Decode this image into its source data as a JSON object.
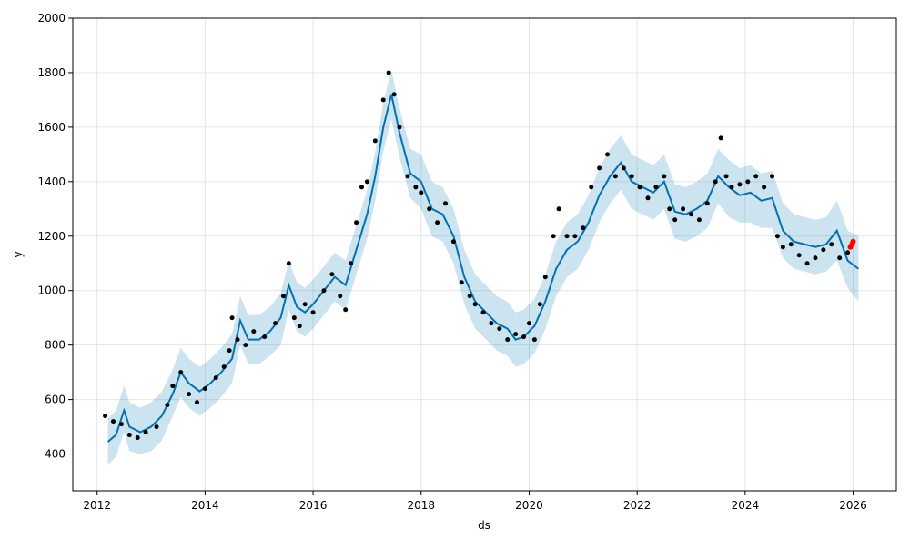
{
  "chart_data": {
    "type": "scatter",
    "xlabel": "ds",
    "ylabel": "y",
    "xlim": [
      2011.55,
      2026.8
    ],
    "ylim": [
      265,
      2000
    ],
    "xticks": [
      2012,
      2014,
      2016,
      2018,
      2020,
      2022,
      2024,
      2026
    ],
    "xtick_labels": [
      "2012",
      "2014",
      "2016",
      "2018",
      "2020",
      "2022",
      "2024",
      "2026"
    ],
    "yticks": [
      400,
      600,
      800,
      1000,
      1200,
      1400,
      1600,
      1800,
      2000
    ],
    "ytick_labels": [
      "400",
      "600",
      "800",
      "1000",
      "1200",
      "1400",
      "1600",
      "1800",
      "2000"
    ],
    "grid": true,
    "legend": "none",
    "colors": {
      "observed": "#000000",
      "forecast_line": "#0072B2",
      "uncertainty_band": "#0072B2",
      "recent_points": "#ff0000"
    },
    "observed_series": {
      "x": [
        2012.15,
        2012.3,
        2012.45,
        2012.6,
        2012.75,
        2012.9,
        2013.1,
        2013.3,
        2013.4,
        2013.55,
        2013.7,
        2013.85,
        2014.0,
        2014.2,
        2014.35,
        2014.45,
        2014.5,
        2014.6,
        2014.75,
        2014.9,
        2015.1,
        2015.3,
        2015.45,
        2015.55,
        2015.65,
        2015.75,
        2015.85,
        2016.0,
        2016.2,
        2016.35,
        2016.5,
        2016.6,
        2016.7,
        2016.8,
        2016.9,
        2017.0,
        2017.15,
        2017.3,
        2017.4,
        2017.5,
        2017.6,
        2017.75,
        2017.9,
        2018.0,
        2018.15,
        2018.3,
        2018.45,
        2018.6,
        2018.75,
        2018.9,
        2019.0,
        2019.15,
        2019.3,
        2019.45,
        2019.6,
        2019.75,
        2019.9,
        2020.0,
        2020.1,
        2020.2,
        2020.3,
        2020.45,
        2020.55,
        2020.7,
        2020.85,
        2021.0,
        2021.15,
        2021.3,
        2021.45,
        2021.6,
        2021.75,
        2021.9,
        2022.05,
        2022.2,
        2022.35,
        2022.5,
        2022.6,
        2022.7,
        2022.85,
        2023.0,
        2023.15,
        2023.3,
        2023.45,
        2023.55,
        2023.65,
        2023.75,
        2023.9,
        2024.05,
        2024.2,
        2024.35,
        2024.5,
        2024.6,
        2024.7,
        2024.85,
        2025.0,
        2025.15,
        2025.3,
        2025.45,
        2025.6,
        2025.75,
        2025.9
      ],
      "y": [
        540,
        520,
        510,
        470,
        460,
        480,
        500,
        580,
        650,
        700,
        620,
        590,
        640,
        680,
        720,
        780,
        900,
        820,
        800,
        850,
        830,
        880,
        980,
        1100,
        900,
        870,
        950,
        920,
        1000,
        1060,
        980,
        930,
        1100,
        1250,
        1380,
        1400,
        1550,
        1700,
        1800,
        1720,
        1600,
        1420,
        1380,
        1360,
        1300,
        1250,
        1320,
        1180,
        1030,
        980,
        950,
        920,
        880,
        860,
        820,
        840,
        830,
        880,
        820,
        950,
        1050,
        1200,
        1300,
        1200,
        1200,
        1230,
        1380,
        1450,
        1500,
        1420,
        1450,
        1420,
        1380,
        1340,
        1380,
        1420,
        1300,
        1260,
        1300,
        1280,
        1260,
        1320,
        1400,
        1560,
        1420,
        1380,
        1390,
        1400,
        1420,
        1380,
        1420,
        1200,
        1160,
        1170,
        1130,
        1100,
        1120,
        1150,
        1170,
        1120,
        1140
      ]
    },
    "forecast_series": {
      "x": [
        2012.2,
        2012.35,
        2012.5,
        2012.6,
        2012.8,
        2013.0,
        2013.2,
        2013.4,
        2013.55,
        2013.7,
        2013.9,
        2014.1,
        2014.3,
        2014.5,
        2014.65,
        2014.8,
        2015.0,
        2015.2,
        2015.4,
        2015.55,
        2015.7,
        2015.85,
        2016.0,
        2016.2,
        2016.4,
        2016.6,
        2016.8,
        2017.0,
        2017.15,
        2017.3,
        2017.45,
        2017.6,
        2017.8,
        2018.0,
        2018.2,
        2018.4,
        2018.6,
        2018.8,
        2019.0,
        2019.2,
        2019.4,
        2019.6,
        2019.75,
        2019.9,
        2020.1,
        2020.3,
        2020.5,
        2020.7,
        2020.9,
        2021.1,
        2021.3,
        2021.5,
        2021.7,
        2021.9,
        2022.1,
        2022.3,
        2022.5,
        2022.7,
        2022.9,
        2023.1,
        2023.3,
        2023.5,
        2023.7,
        2023.9,
        2024.1,
        2024.3,
        2024.5,
        2024.7,
        2024.9,
        2025.1,
        2025.3,
        2025.5,
        2025.7,
        2025.9,
        2026.1
      ],
      "yhat": [
        445,
        470,
        560,
        500,
        480,
        500,
        540,
        620,
        700,
        660,
        630,
        660,
        700,
        750,
        890,
        820,
        820,
        850,
        900,
        1020,
        940,
        920,
        950,
        1000,
        1050,
        1020,
        1150,
        1280,
        1420,
        1600,
        1720,
        1580,
        1430,
        1400,
        1300,
        1280,
        1200,
        1050,
        960,
        920,
        880,
        860,
        820,
        830,
        870,
        960,
        1080,
        1150,
        1180,
        1250,
        1350,
        1420,
        1470,
        1400,
        1380,
        1360,
        1400,
        1290,
        1280,
        1300,
        1330,
        1420,
        1380,
        1350,
        1360,
        1330,
        1340,
        1220,
        1180,
        1170,
        1160,
        1170,
        1220,
        1110,
        1080
      ],
      "yhat_lower": [
        360,
        390,
        480,
        410,
        400,
        410,
        450,
        540,
        610,
        570,
        540,
        570,
        610,
        660,
        800,
        730,
        730,
        760,
        800,
        930,
        850,
        830,
        860,
        910,
        960,
        930,
        1060,
        1190,
        1330,
        1510,
        1630,
        1490,
        1340,
        1300,
        1200,
        1180,
        1100,
        950,
        860,
        820,
        780,
        760,
        720,
        730,
        770,
        860,
        980,
        1050,
        1080,
        1150,
        1250,
        1320,
        1370,
        1300,
        1280,
        1260,
        1300,
        1190,
        1180,
        1200,
        1230,
        1320,
        1270,
        1250,
        1250,
        1230,
        1230,
        1120,
        1080,
        1070,
        1060,
        1070,
        1110,
        1010,
        960
      ],
      "yhat_upper": [
        530,
        560,
        650,
        590,
        570,
        590,
        630,
        710,
        790,
        750,
        720,
        750,
        790,
        840,
        980,
        910,
        910,
        940,
        990,
        1110,
        1030,
        1010,
        1040,
        1090,
        1140,
        1110,
        1240,
        1370,
        1510,
        1690,
        1810,
        1670,
        1520,
        1500,
        1400,
        1380,
        1300,
        1150,
        1060,
        1020,
        980,
        960,
        920,
        930,
        970,
        1060,
        1180,
        1250,
        1280,
        1350,
        1450,
        1520,
        1570,
        1500,
        1480,
        1460,
        1500,
        1390,
        1380,
        1400,
        1430,
        1520,
        1480,
        1450,
        1460,
        1430,
        1440,
        1320,
        1280,
        1270,
        1260,
        1270,
        1330,
        1220,
        1200
      ]
    },
    "recent_points": {
      "x": [
        2025.95,
        2025.98,
        2026.0
      ],
      "y": [
        1160,
        1170,
        1180
      ]
    }
  }
}
